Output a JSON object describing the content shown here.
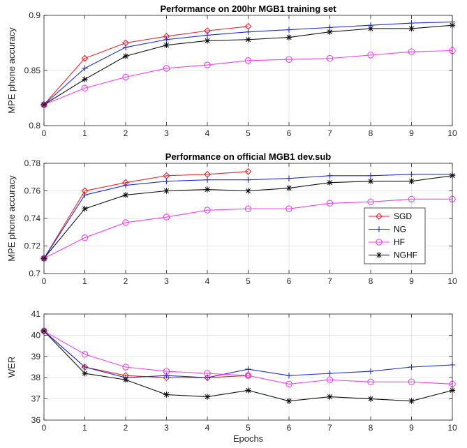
{
  "chart_data": [
    {
      "type": "line",
      "title": "Performance on 200hr MGB1 training set",
      "xlabel": "",
      "ylabel": "MPE phone accuracy",
      "xlim": [
        0,
        10
      ],
      "ylim": [
        0.8,
        0.9
      ],
      "xticks": [
        "0",
        "1",
        "2",
        "3",
        "4",
        "5",
        "6",
        "7",
        "8",
        "9",
        "10"
      ],
      "yticks": [
        "0.8",
        "0.85",
        "0.9"
      ],
      "ytick_values": [
        0.8,
        0.85,
        0.9
      ],
      "grid": true,
      "legend": "none",
      "series": [
        {
          "name": "SGD",
          "color": "#e8262b",
          "marker": "diamond",
          "x": [
            0,
            1,
            2,
            3,
            4,
            5
          ],
          "values": [
            0.819,
            0.861,
            0.875,
            0.881,
            0.886,
            0.89
          ]
        },
        {
          "name": "NG",
          "color": "#1f2fd6",
          "marker": "plus",
          "x": [
            0,
            1,
            2,
            3,
            4,
            5,
            6,
            7,
            8,
            9,
            10
          ],
          "values": [
            0.819,
            0.852,
            0.871,
            0.878,
            0.882,
            0.885,
            0.887,
            0.889,
            0.891,
            0.893,
            0.894
          ]
        },
        {
          "name": "HF",
          "color": "#f23ff2",
          "marker": "circle",
          "x": [
            0,
            1,
            2,
            3,
            4,
            5,
            6,
            7,
            8,
            9,
            10
          ],
          "values": [
            0.819,
            0.834,
            0.844,
            0.852,
            0.855,
            0.859,
            0.86,
            0.861,
            0.864,
            0.867,
            0.868
          ]
        },
        {
          "name": "NGHF",
          "color": "#111111",
          "marker": "star",
          "x": [
            0,
            1,
            2,
            3,
            4,
            5,
            6,
            7,
            8,
            9,
            10
          ],
          "values": [
            0.819,
            0.842,
            0.863,
            0.873,
            0.877,
            0.878,
            0.88,
            0.885,
            0.888,
            0.888,
            0.891
          ]
        }
      ]
    },
    {
      "type": "line",
      "title": "Performance on official MGB1 dev.sub",
      "xlabel": "",
      "ylabel": "MPE phone accuracy",
      "xlim": [
        0,
        10
      ],
      "ylim": [
        0.7,
        0.78
      ],
      "xticks": [
        "0",
        "1",
        "2",
        "3",
        "4",
        "5",
        "6",
        "7",
        "8",
        "9",
        "10"
      ],
      "yticks": [
        "0.7",
        "0.72",
        "0.74",
        "0.76",
        "0.78"
      ],
      "ytick_values": [
        0.7,
        0.72,
        0.74,
        0.76,
        0.78
      ],
      "grid": true,
      "legend": "right",
      "series": [
        {
          "name": "SGD",
          "color": "#e8262b",
          "marker": "diamond",
          "x": [
            0,
            1,
            2,
            3,
            4,
            5
          ],
          "values": [
            0.711,
            0.76,
            0.766,
            0.771,
            0.772,
            0.774
          ]
        },
        {
          "name": "NG",
          "color": "#1f2fd6",
          "marker": "plus",
          "x": [
            0,
            1,
            2,
            3,
            4,
            5,
            6,
            7,
            8,
            9,
            10
          ],
          "values": [
            0.711,
            0.757,
            0.764,
            0.767,
            0.768,
            0.768,
            0.769,
            0.771,
            0.771,
            0.772,
            0.772
          ]
        },
        {
          "name": "HF",
          "color": "#f23ff2",
          "marker": "circle",
          "x": [
            0,
            1,
            2,
            3,
            4,
            5,
            6,
            7,
            8,
            9,
            10
          ],
          "values": [
            0.711,
            0.726,
            0.737,
            0.741,
            0.746,
            0.747,
            0.747,
            0.751,
            0.752,
            0.754,
            0.754
          ]
        },
        {
          "name": "NGHF",
          "color": "#111111",
          "marker": "star",
          "x": [
            0,
            1,
            2,
            3,
            4,
            5,
            6,
            7,
            8,
            9,
            10
          ],
          "values": [
            0.711,
            0.747,
            0.757,
            0.76,
            0.761,
            0.76,
            0.762,
            0.766,
            0.767,
            0.767,
            0.771
          ]
        }
      ]
    },
    {
      "type": "line",
      "title": "",
      "xlabel": "Epochs",
      "ylabel": "WER",
      "xlim": [
        0,
        10
      ],
      "ylim": [
        36,
        41
      ],
      "xticks": [
        "0",
        "1",
        "2",
        "3",
        "4",
        "5",
        "6",
        "7",
        "8",
        "9",
        "10"
      ],
      "yticks": [
        "36",
        "37",
        "38",
        "39",
        "40",
        "41"
      ],
      "ytick_values": [
        36,
        37,
        38,
        39,
        40,
        41
      ],
      "grid": true,
      "legend": "none",
      "series": [
        {
          "name": "SGD",
          "color": "#e8262b",
          "marker": "diamond",
          "x": [
            0,
            1,
            2,
            3,
            4,
            5
          ],
          "values": [
            40.2,
            38.5,
            38.1,
            38.0,
            38.0,
            38.1
          ]
        },
        {
          "name": "NG",
          "color": "#1f2fd6",
          "marker": "plus",
          "x": [
            0,
            1,
            2,
            3,
            4,
            5,
            6,
            7,
            8,
            9,
            10
          ],
          "values": [
            40.2,
            38.5,
            38.0,
            38.1,
            38.0,
            38.4,
            38.1,
            38.2,
            38.3,
            38.5,
            38.6
          ]
        },
        {
          "name": "HF",
          "color": "#f23ff2",
          "marker": "circle",
          "x": [
            0,
            1,
            2,
            3,
            4,
            5,
            6,
            7,
            8,
            9,
            10
          ],
          "values": [
            40.2,
            39.1,
            38.5,
            38.3,
            38.2,
            38.1,
            37.7,
            37.9,
            37.8,
            37.8,
            37.7
          ]
        },
        {
          "name": "NGHF",
          "color": "#111111",
          "marker": "star",
          "x": [
            0,
            1,
            2,
            3,
            4,
            5,
            6,
            7,
            8,
            9,
            10
          ],
          "values": [
            40.2,
            38.2,
            37.9,
            37.2,
            37.1,
            37.4,
            36.9,
            37.1,
            37.0,
            36.9,
            37.4
          ]
        }
      ]
    }
  ]
}
